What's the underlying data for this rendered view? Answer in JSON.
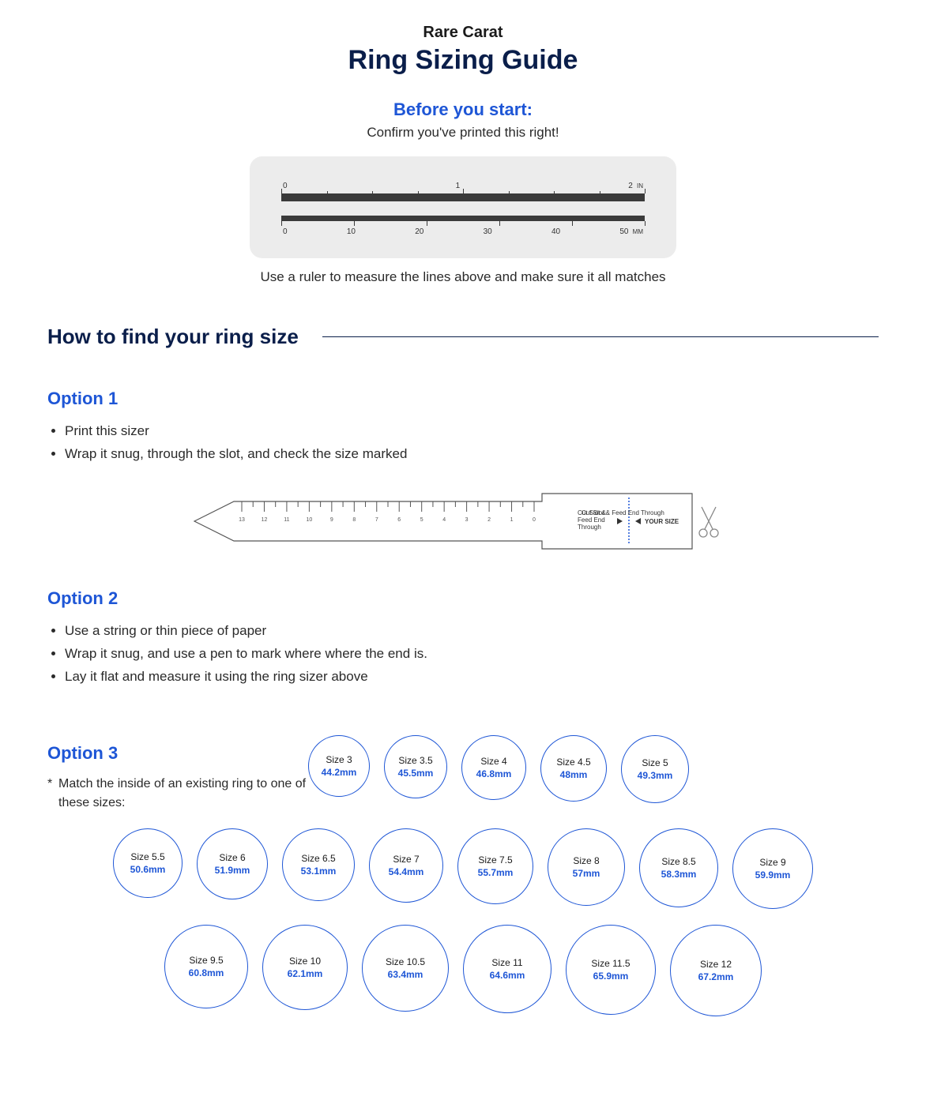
{
  "header": {
    "brand": "Rare Carat",
    "title": "Ring Sizing Guide"
  },
  "before_start": {
    "heading": "Before you start:",
    "sub": "Confirm you've printed this right!",
    "inch_ruler": {
      "labels": [
        "0",
        "1",
        "2"
      ],
      "unit": "IN",
      "major_ticks": 2,
      "minor_per_major": 4
    },
    "mm_ruler": {
      "labels": [
        "0",
        "10",
        "20",
        "30",
        "40",
        "50"
      ],
      "unit": "MM",
      "bottom_labels": true
    },
    "note": "Use a ruler to measure the lines above and make sure it all matches"
  },
  "section_heading": "How to find your ring size",
  "option1": {
    "heading": "Option 1",
    "items": [
      "Print this sizer",
      "Wrap it snug, through the slot, and check the size marked"
    ],
    "strip": {
      "cut_slot_text": "Cut Slot & Feed End Through",
      "your_size_text": "YOUR SIZE",
      "numbers": [
        "13",
        "12",
        "11",
        "10",
        "9",
        "8",
        "7",
        "6",
        "5",
        "4",
        "3",
        "2",
        "1",
        "0"
      ]
    }
  },
  "option2": {
    "heading": "Option 2",
    "items": [
      "Use a string or thin piece of paper",
      "Wrap it snug, and use a pen to mark where where the end is.",
      "Lay it flat and measure it using the ring sizer above"
    ]
  },
  "option3": {
    "heading": "Option 3",
    "note": "Match the inside of an existing ring to one of these sizes:",
    "rings_row1": [
      {
        "size": "Size 3",
        "mm": "44.2mm",
        "d": 78
      },
      {
        "size": "Size 3.5",
        "mm": "45.5mm",
        "d": 80
      },
      {
        "size": "Size 4",
        "mm": "46.8mm",
        "d": 82
      },
      {
        "size": "Size 4.5",
        "mm": "48mm",
        "d": 84
      },
      {
        "size": "Size 5",
        "mm": "49.3mm",
        "d": 86
      }
    ],
    "rings_row2": [
      {
        "size": "Size 5.5",
        "mm": "50.6mm",
        "d": 88
      },
      {
        "size": "Size 6",
        "mm": "51.9mm",
        "d": 90
      },
      {
        "size": "Size 6.5",
        "mm": "53.1mm",
        "d": 92
      },
      {
        "size": "Size 7",
        "mm": "54.4mm",
        "d": 94
      },
      {
        "size": "Size 7.5",
        "mm": "55.7mm",
        "d": 96
      },
      {
        "size": "Size 8",
        "mm": "57mm",
        "d": 98
      },
      {
        "size": "Size 8.5",
        "mm": "58.3mm",
        "d": 100
      },
      {
        "size": "Size 9",
        "mm": "59.9mm",
        "d": 102
      }
    ],
    "rings_row3": [
      {
        "size": "Size 9.5",
        "mm": "60.8mm",
        "d": 106
      },
      {
        "size": "Size 10",
        "mm": "62.1mm",
        "d": 108
      },
      {
        "size": "Size 10.5",
        "mm": "63.4mm",
        "d": 110
      },
      {
        "size": "Size 11",
        "mm": "64.6mm",
        "d": 112
      },
      {
        "size": "Size 11.5",
        "mm": "65.9mm",
        "d": 114
      },
      {
        "size": "Size 12",
        "mm": "67.2mm",
        "d": 116
      }
    ]
  },
  "colors": {
    "brand_blue": "#1e56d6",
    "dark_navy": "#0a1e4a",
    "ruler_bg": "#ececec",
    "ruler_bar": "#3a3a3a"
  }
}
